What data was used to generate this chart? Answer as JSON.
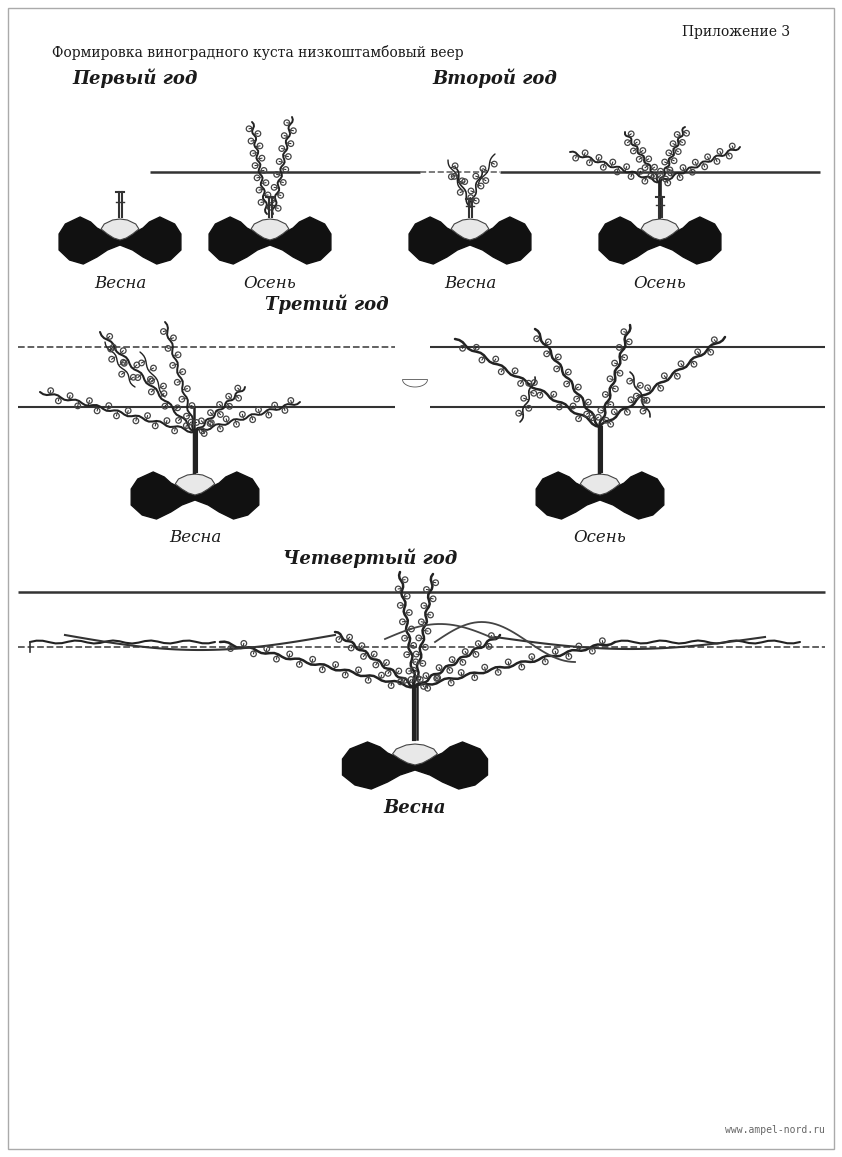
{
  "title_right": "Приложение 3",
  "title_main": "Формировка виноградного куста низкоштамбовый веер",
  "section1_title": "Первый год",
  "section2_title": "Второй год",
  "section3_title": "Третий год",
  "section4_title": "Четвертый год",
  "labels_row1": [
    "Весна",
    "Осень",
    "Весна",
    "Осень"
  ],
  "labels_row2": [
    "Весна",
    "Осень"
  ],
  "label_row3": "Весна",
  "website": "www.ampel-nord.ru",
  "bg_color": "#ffffff",
  "line_color": "#1a1a1a",
  "text_color": "#1a1a1a"
}
